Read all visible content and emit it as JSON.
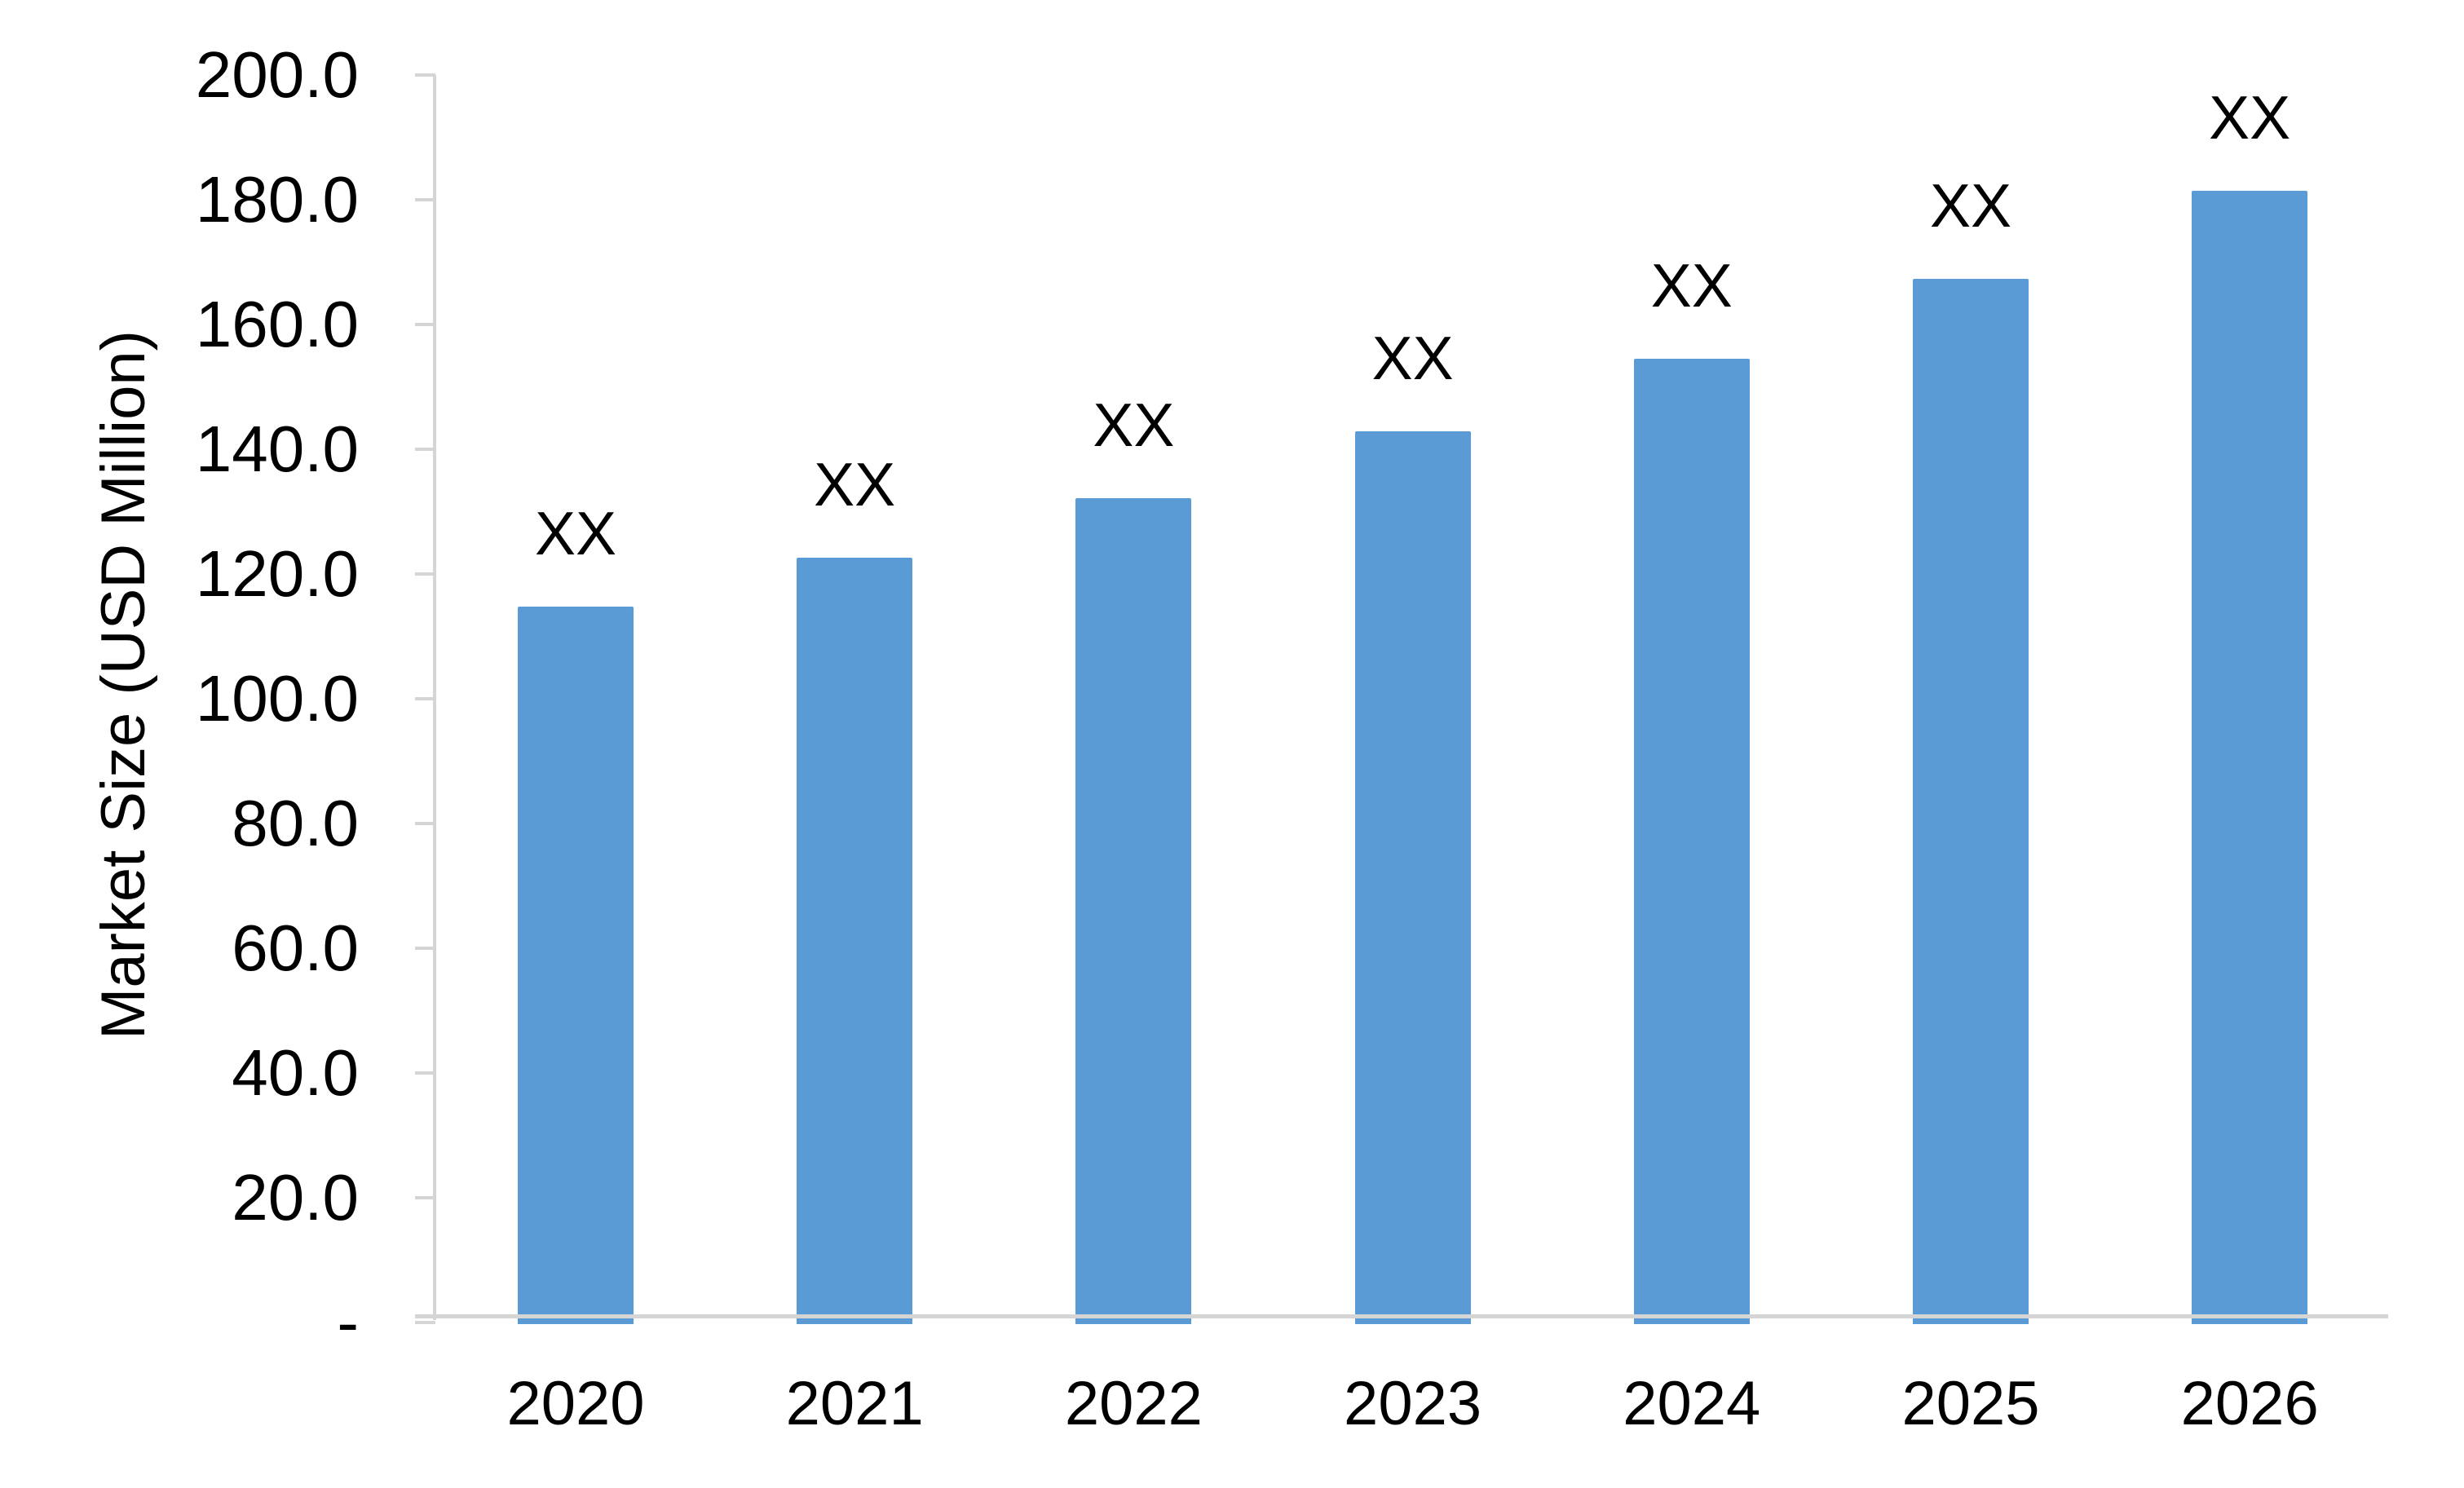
{
  "chart_data": {
    "type": "bar",
    "title": "",
    "xlabel": "",
    "ylabel": "Market Size (USD Million)",
    "categories": [
      "2020",
      "2021",
      "2022",
      "2023",
      "2024",
      "2025",
      "2026"
    ],
    "series": [
      {
        "name": "Market Size",
        "values": [
          114.8,
          122.6,
          132.1,
          142.9,
          154.5,
          167.3,
          181.5
        ],
        "data_labels": [
          "XX",
          "XX",
          "XX",
          "XX",
          "XX",
          "XX",
          "XX"
        ]
      }
    ],
    "ylim": [
      0,
      200
    ],
    "ytick_step": 20,
    "ytick_labels": [
      "-",
      "20.0",
      "40.0",
      "60.0",
      "80.0",
      "100.0",
      "120.0",
      "140.0",
      "160.0",
      "180.0",
      "200.0"
    ],
    "grid": "off",
    "legend_position": "none",
    "colors": {
      "bar": "#5B9BD5",
      "axis_line": "#D5D5D5",
      "text": "#000000",
      "background": "#FFFFFF"
    }
  }
}
